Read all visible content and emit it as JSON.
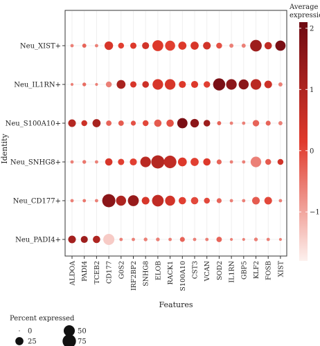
{
  "chart_data": {
    "type": "dotplot",
    "xlabel": "Features",
    "ylabel": "Identity",
    "features": [
      "ALDOA",
      "PADI4",
      "TCEB2",
      "CD177",
      "G0S2",
      "IRF2BP2",
      "SNHG8",
      "ELOB",
      "RACK1",
      "S100A10",
      "CST3",
      "VCAN",
      "SOD2",
      "IL1RN",
      "GBP5",
      "KLF2",
      "FOSB",
      "XIST"
    ],
    "identities": [
      "Neu_XIST+",
      "Neu_IL1RN+",
      "Neu_S100A10+",
      "Neu_SNHG8+",
      "Neu_CD177+",
      "Neu_PADI4+"
    ],
    "color_legend": {
      "title_line1": "Average",
      "title_line2": "expression",
      "min": -1.8,
      "max": 2.1,
      "ticks": [
        {
          "value": 2,
          "label": "2"
        },
        {
          "value": 1,
          "label": "1"
        },
        {
          "value": 0,
          "label": "0"
        },
        {
          "value": -1,
          "label": "−1"
        }
      ],
      "color_low": "#fdf1ee",
      "color_mid": "#e03a2c",
      "color_high": "#6e0a12"
    },
    "size_legend": {
      "title": "Percent expressed",
      "entries": [
        {
          "value": 0,
          "label": "0"
        },
        {
          "value": 25,
          "label": "25"
        },
        {
          "value": 50,
          "label": "50"
        },
        {
          "value": 75,
          "label": "75"
        }
      ]
    },
    "series": [
      {
        "name": "Neu_XIST+",
        "pct": [
          3,
          5,
          3,
          28,
          12,
          14,
          18,
          48,
          40,
          25,
          25,
          22,
          12,
          5,
          5,
          55,
          20,
          42
        ],
        "expr": [
          -0.6,
          -0.3,
          -0.6,
          0.3,
          0.1,
          0.2,
          0.4,
          0.2,
          0.1,
          0.2,
          0.3,
          0.4,
          -0.1,
          -0.6,
          -0.6,
          1.3,
          0.7,
          1.9
        ]
      },
      {
        "name": "Neu_IL1RN+",
        "pct": [
          2,
          4,
          2,
          12,
          30,
          14,
          16,
          45,
          45,
          18,
          18,
          15,
          60,
          45,
          40,
          45,
          22,
          5
        ],
        "expr": [
          -0.6,
          -0.4,
          -0.6,
          -0.6,
          1.1,
          0.3,
          0.5,
          0.3,
          0.3,
          0.2,
          0.2,
          0.1,
          1.9,
          1.6,
          1.6,
          0.8,
          0.5,
          -0.6
        ]
      },
      {
        "name": "Neu_S100A10+",
        "pct": [
          22,
          12,
          25,
          10,
          10,
          8,
          12,
          20,
          20,
          42,
          28,
          16,
          5,
          3,
          3,
          15,
          8,
          5
        ],
        "expr": [
          0.9,
          0.5,
          1.1,
          -0.3,
          -0.2,
          -0.1,
          0.0,
          -0.2,
          -0.1,
          1.9,
          1.6,
          1.3,
          -0.3,
          -0.6,
          -0.6,
          -0.3,
          -0.3,
          -0.6
        ]
      },
      {
        "name": "Neu_SNHG8+",
        "pct": [
          3,
          4,
          3,
          20,
          14,
          18,
          45,
          72,
          65,
          30,
          25,
          20,
          8,
          3,
          3,
          45,
          12,
          12
        ],
        "expr": [
          -0.6,
          -0.5,
          -0.6,
          0.3,
          0.1,
          0.1,
          0.8,
          0.9,
          0.7,
          0.2,
          0.1,
          0.2,
          -0.3,
          -0.6,
          -0.6,
          -0.6,
          -0.2,
          0.4
        ]
      },
      {
        "name": "Neu_CD177+",
        "pct": [
          3,
          3,
          3,
          72,
          40,
          48,
          22,
          55,
          40,
          20,
          20,
          12,
          8,
          3,
          3,
          22,
          22,
          3
        ],
        "expr": [
          -0.6,
          -0.5,
          -0.6,
          1.6,
          1.0,
          1.4,
          0.3,
          0.7,
          0.4,
          0.1,
          0.0,
          0.0,
          -0.3,
          -0.6,
          -0.6,
          -0.2,
          0.0,
          -0.6
        ]
      },
      {
        "name": "Neu_PADI4+",
        "pct": [
          22,
          18,
          20,
          50,
          3,
          3,
          4,
          4,
          3,
          8,
          3,
          3,
          10,
          2,
          2,
          4,
          3,
          2
        ],
        "expr": [
          1.2,
          1.3,
          1.0,
          -1.4,
          -0.6,
          -0.6,
          -0.6,
          -0.6,
          -0.6,
          -0.3,
          -0.6,
          -0.6,
          -0.3,
          -0.6,
          -0.6,
          -0.6,
          -0.6,
          -0.6
        ]
      }
    ]
  }
}
